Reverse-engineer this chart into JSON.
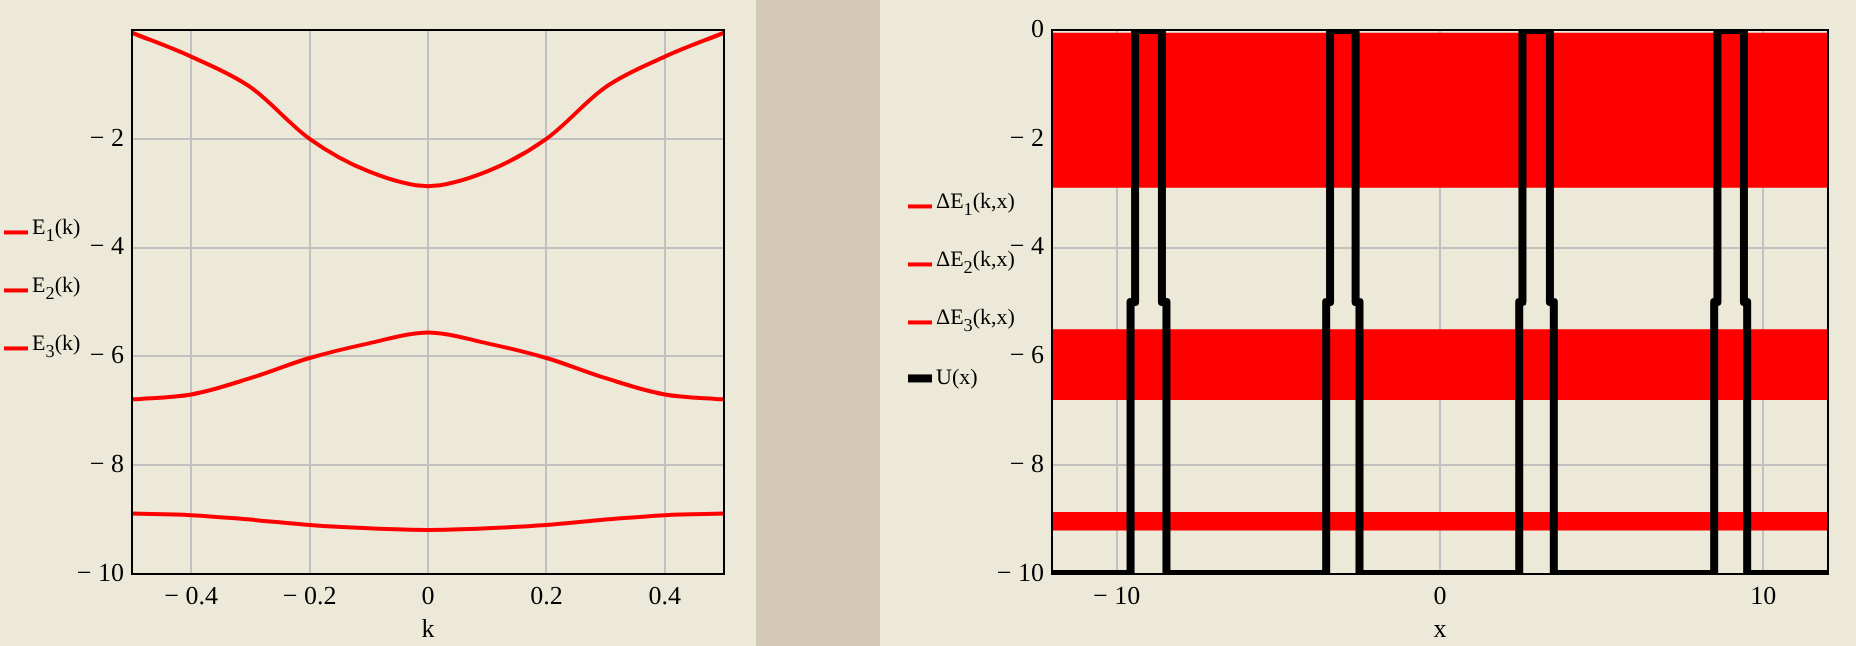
{
  "chart_data": [
    {
      "type": "line",
      "xlabel": "k",
      "xlim": [
        -0.5,
        0.5
      ],
      "xticks": [
        {
          "value": -0.4,
          "label": "− 0.4"
        },
        {
          "value": -0.2,
          "label": "− 0.2"
        },
        0,
        0.2,
        0.4
      ],
      "ylim": [
        -10,
        0
      ],
      "yticks": [
        {
          "value": 0,
          "label": null
        },
        {
          "value": -2,
          "label": "− 2"
        },
        {
          "value": -4,
          "label": "− 4"
        },
        {
          "value": -6,
          "label": "− 6"
        },
        {
          "value": -8,
          "label": "− 8"
        },
        {
          "value": -10,
          "label": "− 10"
        }
      ],
      "grid": true,
      "legend": "left",
      "marker": "none",
      "x": [
        -0.5,
        -0.4,
        -0.3,
        -0.2,
        -0.1,
        0,
        0.1,
        0.2,
        0.3,
        0.4,
        0.5
      ],
      "series": [
        {
          "name": "E$_{1}$(k)",
          "color": "#ff0000",
          "values": [
            -0.05,
            -0.49,
            -1.05,
            -2.0,
            -2.6,
            -2.87,
            -2.6,
            -2.0,
            -1.05,
            -0.49,
            -0.05
          ]
        },
        {
          "name": "E$_{2}$(k)",
          "color": "#ff0000",
          "values": [
            -6.79,
            -6.7,
            -6.4,
            -6.03,
            -5.76,
            -5.56,
            -5.76,
            -6.03,
            -6.4,
            -6.7,
            -6.79
          ]
        },
        {
          "name": "E$_{3}$(k)",
          "color": "#ff0000",
          "values": [
            -8.89,
            -8.92,
            -9.0,
            -9.1,
            -9.16,
            -9.19,
            -9.16,
            -9.1,
            -9.0,
            -8.92,
            -8.89
          ]
        }
      ]
    },
    {
      "type": "line",
      "xlabel": "x",
      "xlim": [
        -12,
        12
      ],
      "xticks": [
        {
          "value": -10,
          "label": "− 10"
        },
        0,
        10
      ],
      "ylim": [
        -10,
        0
      ],
      "yticks": [
        0,
        {
          "value": -2,
          "label": "− 2"
        },
        {
          "value": -4,
          "label": "− 4"
        },
        {
          "value": -6,
          "label": "− 6"
        },
        {
          "value": -8,
          "label": "− 8"
        },
        {
          "value": -10,
          "label": "− 10"
        }
      ],
      "grid": true,
      "legend": "left",
      "marker": "none",
      "bands": [
        {
          "axis": "y",
          "from": -0.05,
          "to": -2.9,
          "label": "ΔE$_{1}$(k,x)",
          "color": "#ff0000"
        },
        {
          "axis": "y",
          "from": -5.5,
          "to": -6.8,
          "label": "ΔE$_{2}$(k,x)",
          "color": "#ff0000"
        },
        {
          "axis": "y",
          "from": -8.86,
          "to": -9.2,
          "label": "ΔE$_{3}$(k,x)",
          "color": "#ff0000"
        }
      ],
      "series": [
        {
          "name": "U(x)",
          "color": "#000000",
          "x": [
            -12,
            -9.57,
            -9.57,
            -9.43,
            -9.43,
            -8.6,
            -8.6,
            -8.46,
            -8.46,
            -3.52,
            -3.52,
            -3.4,
            -3.4,
            -2.61,
            -2.61,
            -2.49,
            -2.49,
            2.45,
            2.45,
            2.55,
            2.55,
            3.4,
            3.4,
            3.52,
            3.52,
            8.48,
            8.48,
            8.58,
            8.58,
            9.4,
            9.4,
            9.5,
            9.5,
            12
          ],
          "values": [
            -10,
            -10,
            -5,
            -5,
            0,
            0,
            -5,
            -5,
            -10,
            -10,
            -5,
            -5,
            0,
            0,
            -5,
            -5,
            -10,
            -10,
            -5,
            -5,
            0,
            0,
            -5,
            -5,
            -10,
            -10,
            -5,
            -5,
            0,
            0,
            -5,
            -5,
            -10,
            -10
          ]
        }
      ]
    }
  ]
}
